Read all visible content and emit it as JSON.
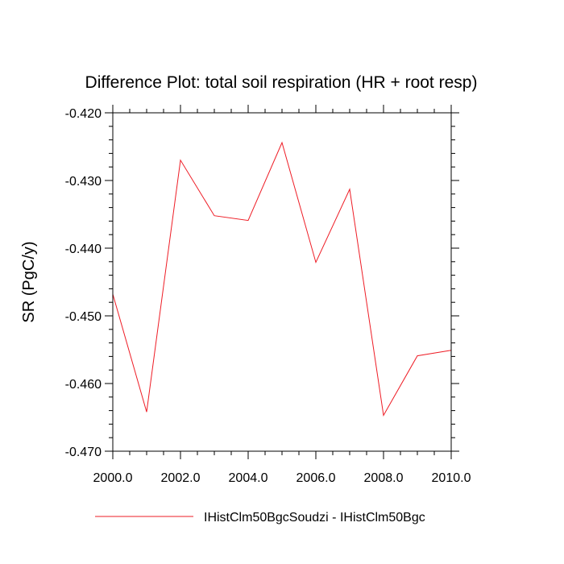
{
  "chart_data": {
    "type": "line",
    "title": "Difference Plot: total soil respiration (HR + root resp)",
    "xlabel": "",
    "ylabel": "SR  (PgC/y)",
    "xlim": [
      2000,
      2010
    ],
    "ylim": [
      -0.47,
      -0.42
    ],
    "xticks": [
      2000,
      2002,
      2004,
      2006,
      2008,
      2010
    ],
    "xtick_labels": [
      "2000.0",
      "2002.0",
      "2004.0",
      "2006.0",
      "2008.0",
      "2010.0"
    ],
    "yticks": [
      -0.42,
      -0.43,
      -0.44,
      -0.45,
      -0.46,
      -0.47
    ],
    "ytick_labels": [
      "-0.420",
      "-0.430",
      "-0.440",
      "-0.450",
      "-0.460",
      "-0.470"
    ],
    "grid": false,
    "legend_position": "bottom",
    "series": [
      {
        "name": "IHistClm50BgcSoudzi - IHistClm50Bgc",
        "color": "#ee1c25",
        "x": [
          2000,
          2001,
          2002,
          2003,
          2004,
          2005,
          2006,
          2007,
          2008,
          2009,
          2010
        ],
        "y": [
          -0.4468,
          -0.4642,
          -0.427,
          -0.4352,
          -0.4359,
          -0.4244,
          -0.4421,
          -0.4313,
          -0.4647,
          -0.4559,
          -0.4551
        ]
      }
    ]
  }
}
